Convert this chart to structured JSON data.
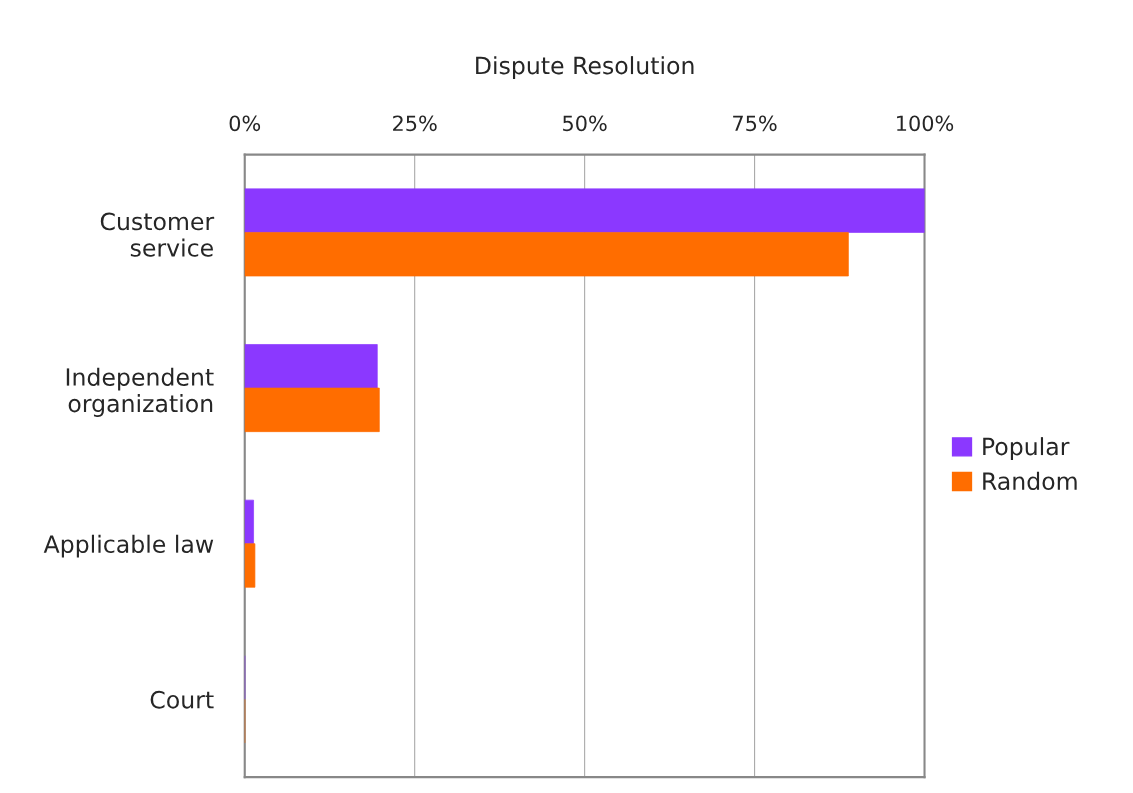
{
  "chart_data": {
    "type": "bar",
    "orientation": "horizontal",
    "title": "Dispute Resolution",
    "categories": [
      "Customer\nservice",
      "Independent\norganization",
      "Applicable law",
      "Court"
    ],
    "series": [
      {
        "name": "Popular",
        "color": "#8b38ff",
        "values": [
          100,
          19.5,
          1.3,
          0
        ]
      },
      {
        "name": "Random",
        "color": "#ff6d00",
        "values": [
          88.8,
          19.8,
          1.5,
          0
        ]
      }
    ],
    "xlim": [
      0,
      100
    ],
    "xticks": [
      {
        "value": 0,
        "label": "0%"
      },
      {
        "value": 25,
        "label": "25%"
      },
      {
        "value": 50,
        "label": "50%"
      },
      {
        "value": 75,
        "label": "75%"
      },
      {
        "value": 100,
        "label": "100%"
      }
    ],
    "grid": "x",
    "legend": "right"
  }
}
